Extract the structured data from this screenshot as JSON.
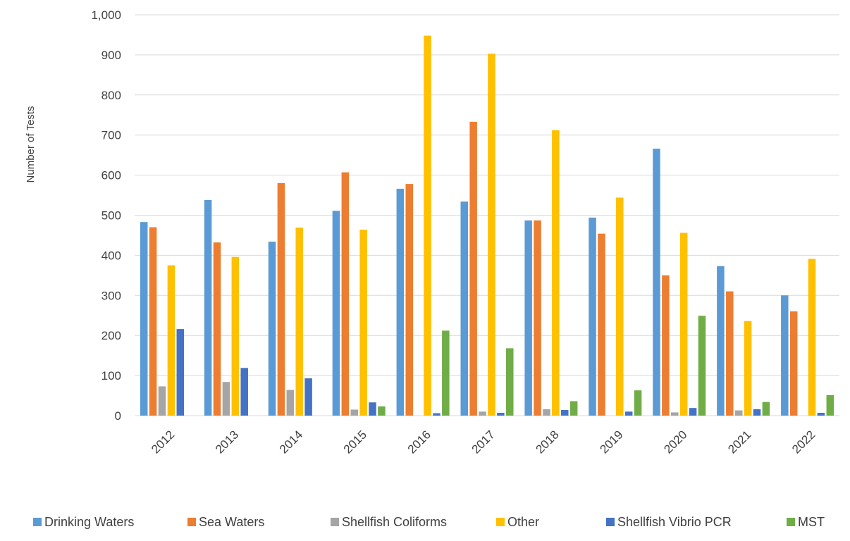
{
  "chart_data": {
    "type": "bar",
    "title": "",
    "xlabel": "",
    "ylabel": "Number of Tests",
    "ylim": [
      0,
      1000
    ],
    "yticks": [
      0,
      100,
      200,
      300,
      400,
      500,
      600,
      700,
      800,
      900,
      1000
    ],
    "ytick_labels": [
      "0",
      "100",
      "200",
      "300",
      "400",
      "500",
      "600",
      "700",
      "800",
      "900",
      "1,000"
    ],
    "grid": "horizontal",
    "legend_position": "bottom",
    "categories": [
      "2012",
      "2013",
      "2014",
      "2015",
      "2016",
      "2017",
      "2018",
      "2019",
      "2020",
      "2021",
      "2022"
    ],
    "series": [
      {
        "name": "Drinking Waters",
        "color": "#5B9BD5",
        "values": [
          483,
          538,
          434,
          511,
          566,
          534,
          487,
          494,
          666,
          373,
          300
        ]
      },
      {
        "name": "Sea Waters",
        "color": "#ED7D31",
        "values": [
          470,
          432,
          580,
          607,
          578,
          733,
          487,
          454,
          350,
          310,
          260
        ]
      },
      {
        "name": "Shellfish Coliforms",
        "color": "#A5A5A5",
        "values": [
          73,
          84,
          64,
          15,
          0,
          10,
          16,
          0,
          8,
          13,
          0
        ]
      },
      {
        "name": "Other",
        "color": "#FFC000",
        "values": [
          375,
          396,
          469,
          464,
          948,
          903,
          712,
          544,
          456,
          236,
          391
        ]
      },
      {
        "name": "Shellfish Vibrio PCR",
        "color": "#4472C4",
        "values": [
          216,
          119,
          93,
          33,
          6,
          7,
          14,
          10,
          19,
          16,
          7
        ]
      },
      {
        "name": "MST",
        "color": "#70AD47",
        "values": [
          0,
          0,
          0,
          23,
          212,
          168,
          36,
          63,
          249,
          34,
          51
        ]
      }
    ]
  }
}
